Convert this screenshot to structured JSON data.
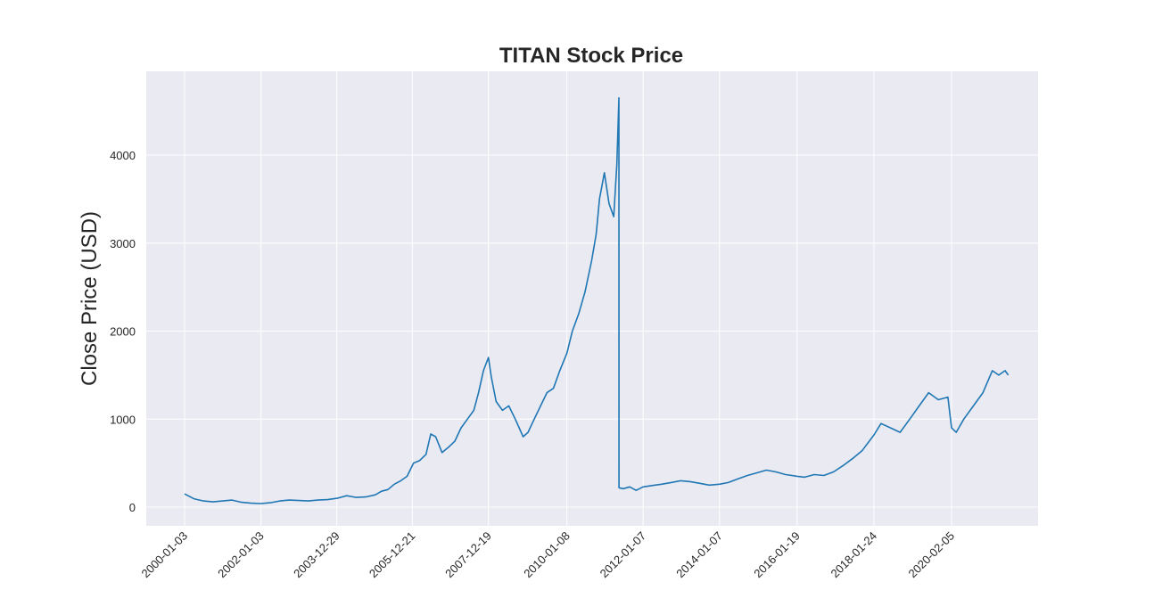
{
  "chart_data": {
    "type": "line",
    "title": "TITAN Stock Price",
    "xlabel": "",
    "ylabel": "Close Price (USD)",
    "ylim": [
      -200,
      4900
    ],
    "yticks": [
      0,
      1000,
      2000,
      3000,
      4000
    ],
    "grid": true,
    "xticks": [
      "2000-01-03",
      "2002-01-03",
      "2003-12-29",
      "2005-12-21",
      "2007-12-19",
      "2010-01-08",
      "2012-01-07",
      "2014-01-07",
      "2016-01-19",
      "2018-01-24",
      "2020-02-05"
    ],
    "series": [
      {
        "color": "#1f77b4",
        "x": [
          "2000-01-03",
          "2000-04-01",
          "2000-07-01",
          "2000-10-01",
          "2001-01-01",
          "2001-04-01",
          "2001-07-01",
          "2001-10-01",
          "2002-01-03",
          "2002-04-01",
          "2002-07-01",
          "2002-10-01",
          "2003-01-01",
          "2003-04-01",
          "2003-07-01",
          "2003-10-01",
          "2004-01-01",
          "2004-04-01",
          "2004-07-01",
          "2004-10-01",
          "2005-01-01",
          "2005-03-01",
          "2005-05-01",
          "2005-07-01",
          "2005-09-01",
          "2005-11-01",
          "2006-01-01",
          "2006-03-01",
          "2006-05-01",
          "2006-06-15",
          "2006-08-01",
          "2006-10-01",
          "2006-12-01",
          "2007-02-01",
          "2007-04-01",
          "2007-06-01",
          "2007-08-01",
          "2007-09-15",
          "2007-11-01",
          "2007-12-19",
          "2008-01-15",
          "2008-03-01",
          "2008-05-01",
          "2008-07-01",
          "2008-09-01",
          "2008-11-15",
          "2009-01-01",
          "2009-03-01",
          "2009-05-01",
          "2009-07-01",
          "2009-09-01",
          "2009-11-01",
          "2010-01-08",
          "2010-03-01",
          "2010-05-01",
          "2010-07-01",
          "2010-09-01",
          "2010-10-15",
          "2010-11-15",
          "2011-01-01",
          "2011-02-15",
          "2011-04-01",
          "2011-05-01",
          "2011-05-20",
          "2011-05-21",
          "2011-07-01",
          "2011-09-01",
          "2011-11-01",
          "2012-01-07",
          "2012-04-01",
          "2012-07-01",
          "2012-10-01",
          "2013-01-01",
          "2013-04-01",
          "2013-07-01",
          "2013-10-01",
          "2014-01-07",
          "2014-04-01",
          "2014-07-01",
          "2014-10-01",
          "2015-01-01",
          "2015-04-01",
          "2015-07-01",
          "2015-10-01",
          "2016-01-19",
          "2016-04-01",
          "2016-07-01",
          "2016-10-01",
          "2017-01-01",
          "2017-04-01",
          "2017-07-01",
          "2017-10-01",
          "2018-01-24",
          "2018-04-01",
          "2018-07-01",
          "2018-10-01",
          "2019-01-01",
          "2019-04-01",
          "2019-07-01",
          "2019-10-01",
          "2020-01-01",
          "2020-02-05",
          "2020-03-20",
          "2020-06-01",
          "2020-09-01",
          "2020-12-01",
          "2021-03-01",
          "2021-05-01",
          "2021-07-01",
          "2021-08-01"
        ],
        "y": [
          150,
          95,
          70,
          60,
          70,
          80,
          55,
          45,
          40,
          50,
          70,
          80,
          75,
          70,
          80,
          85,
          100,
          130,
          110,
          115,
          140,
          180,
          200,
          260,
          300,
          350,
          500,
          530,
          600,
          830,
          800,
          620,
          680,
          750,
          900,
          1000,
          1100,
          1300,
          1550,
          1700,
          1480,
          1200,
          1100,
          1150,
          1000,
          800,
          850,
          1000,
          1150,
          1300,
          1350,
          1550,
          1750,
          2000,
          2200,
          2450,
          2800,
          3100,
          3500,
          3800,
          3450,
          3300,
          3900,
          4650,
          220,
          210,
          230,
          190,
          230,
          245,
          260,
          280,
          300,
          290,
          270,
          250,
          260,
          280,
          320,
          360,
          390,
          420,
          400,
          370,
          350,
          340,
          370,
          360,
          400,
          470,
          550,
          640,
          820,
          950,
          900,
          850,
          1000,
          1150,
          1300,
          1220,
          1250,
          900,
          850,
          1000,
          1150,
          1300,
          1550,
          1500,
          1550,
          1500
        ]
      }
    ]
  }
}
